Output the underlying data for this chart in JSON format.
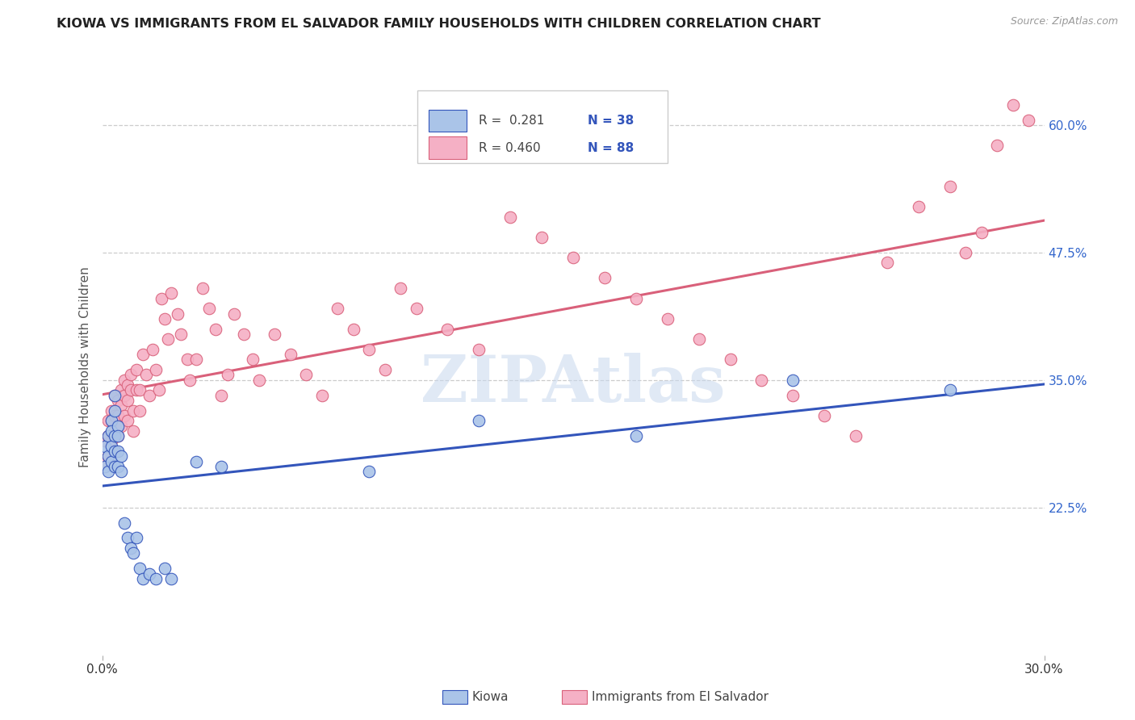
{
  "title": "KIOWA VS IMMIGRANTS FROM EL SALVADOR FAMILY HOUSEHOLDS WITH CHILDREN CORRELATION CHART",
  "source": "Source: ZipAtlas.com",
  "ylabel": "Family Households with Children",
  "x_min": 0.0,
  "x_max": 0.3,
  "y_min": 0.08,
  "y_max": 0.645,
  "right_yticks": [
    0.225,
    0.35,
    0.475,
    0.6
  ],
  "right_yticklabels": [
    "22.5%",
    "35.0%",
    "47.5%",
    "60.0%"
  ],
  "xticks": [
    0.0,
    0.3
  ],
  "xticklabels": [
    "0.0%",
    "30.0%"
  ],
  "series1_color": "#aac4e8",
  "series1_line_color": "#3355bb",
  "series2_color": "#f5b0c5",
  "series2_line_color": "#d9607a",
  "legend_label1": "Kiowa",
  "legend_label2": "Immigrants from El Salvador",
  "watermark": "ZIPAtlas",
  "kiowa_x": [
    0.001,
    0.001,
    0.002,
    0.002,
    0.002,
    0.003,
    0.003,
    0.003,
    0.003,
    0.004,
    0.004,
    0.004,
    0.004,
    0.004,
    0.005,
    0.005,
    0.005,
    0.005,
    0.006,
    0.006,
    0.007,
    0.008,
    0.009,
    0.01,
    0.011,
    0.012,
    0.013,
    0.015,
    0.017,
    0.02,
    0.022,
    0.03,
    0.038,
    0.085,
    0.12,
    0.17,
    0.22,
    0.27
  ],
  "kiowa_y": [
    0.285,
    0.265,
    0.295,
    0.275,
    0.26,
    0.31,
    0.3,
    0.285,
    0.27,
    0.32,
    0.335,
    0.295,
    0.28,
    0.265,
    0.305,
    0.295,
    0.28,
    0.265,
    0.275,
    0.26,
    0.21,
    0.195,
    0.185,
    0.18,
    0.195,
    0.165,
    0.155,
    0.16,
    0.155,
    0.165,
    0.155,
    0.27,
    0.265,
    0.26,
    0.31,
    0.295,
    0.35,
    0.34
  ],
  "salvador_x": [
    0.001,
    0.001,
    0.002,
    0.002,
    0.002,
    0.003,
    0.003,
    0.003,
    0.004,
    0.004,
    0.004,
    0.004,
    0.005,
    0.005,
    0.005,
    0.006,
    0.006,
    0.006,
    0.007,
    0.007,
    0.007,
    0.008,
    0.008,
    0.008,
    0.009,
    0.009,
    0.01,
    0.01,
    0.011,
    0.011,
    0.012,
    0.012,
    0.013,
    0.014,
    0.015,
    0.016,
    0.017,
    0.018,
    0.019,
    0.02,
    0.021,
    0.022,
    0.024,
    0.025,
    0.027,
    0.028,
    0.03,
    0.032,
    0.034,
    0.036,
    0.038,
    0.04,
    0.042,
    0.045,
    0.048,
    0.05,
    0.055,
    0.06,
    0.065,
    0.07,
    0.075,
    0.08,
    0.085,
    0.09,
    0.095,
    0.1,
    0.11,
    0.12,
    0.13,
    0.14,
    0.15,
    0.16,
    0.17,
    0.18,
    0.19,
    0.2,
    0.21,
    0.22,
    0.23,
    0.24,
    0.25,
    0.26,
    0.27,
    0.275,
    0.28,
    0.285,
    0.29,
    0.295
  ],
  "salvador_y": [
    0.29,
    0.27,
    0.31,
    0.295,
    0.275,
    0.32,
    0.31,
    0.29,
    0.335,
    0.315,
    0.3,
    0.28,
    0.33,
    0.315,
    0.295,
    0.34,
    0.325,
    0.305,
    0.35,
    0.335,
    0.315,
    0.345,
    0.33,
    0.31,
    0.355,
    0.34,
    0.32,
    0.3,
    0.36,
    0.34,
    0.32,
    0.34,
    0.375,
    0.355,
    0.335,
    0.38,
    0.36,
    0.34,
    0.43,
    0.41,
    0.39,
    0.435,
    0.415,
    0.395,
    0.37,
    0.35,
    0.37,
    0.44,
    0.42,
    0.4,
    0.335,
    0.355,
    0.415,
    0.395,
    0.37,
    0.35,
    0.395,
    0.375,
    0.355,
    0.335,
    0.42,
    0.4,
    0.38,
    0.36,
    0.44,
    0.42,
    0.4,
    0.38,
    0.51,
    0.49,
    0.47,
    0.45,
    0.43,
    0.41,
    0.39,
    0.37,
    0.35,
    0.335,
    0.315,
    0.295,
    0.465,
    0.52,
    0.54,
    0.475,
    0.495,
    0.58,
    0.62,
    0.605
  ]
}
